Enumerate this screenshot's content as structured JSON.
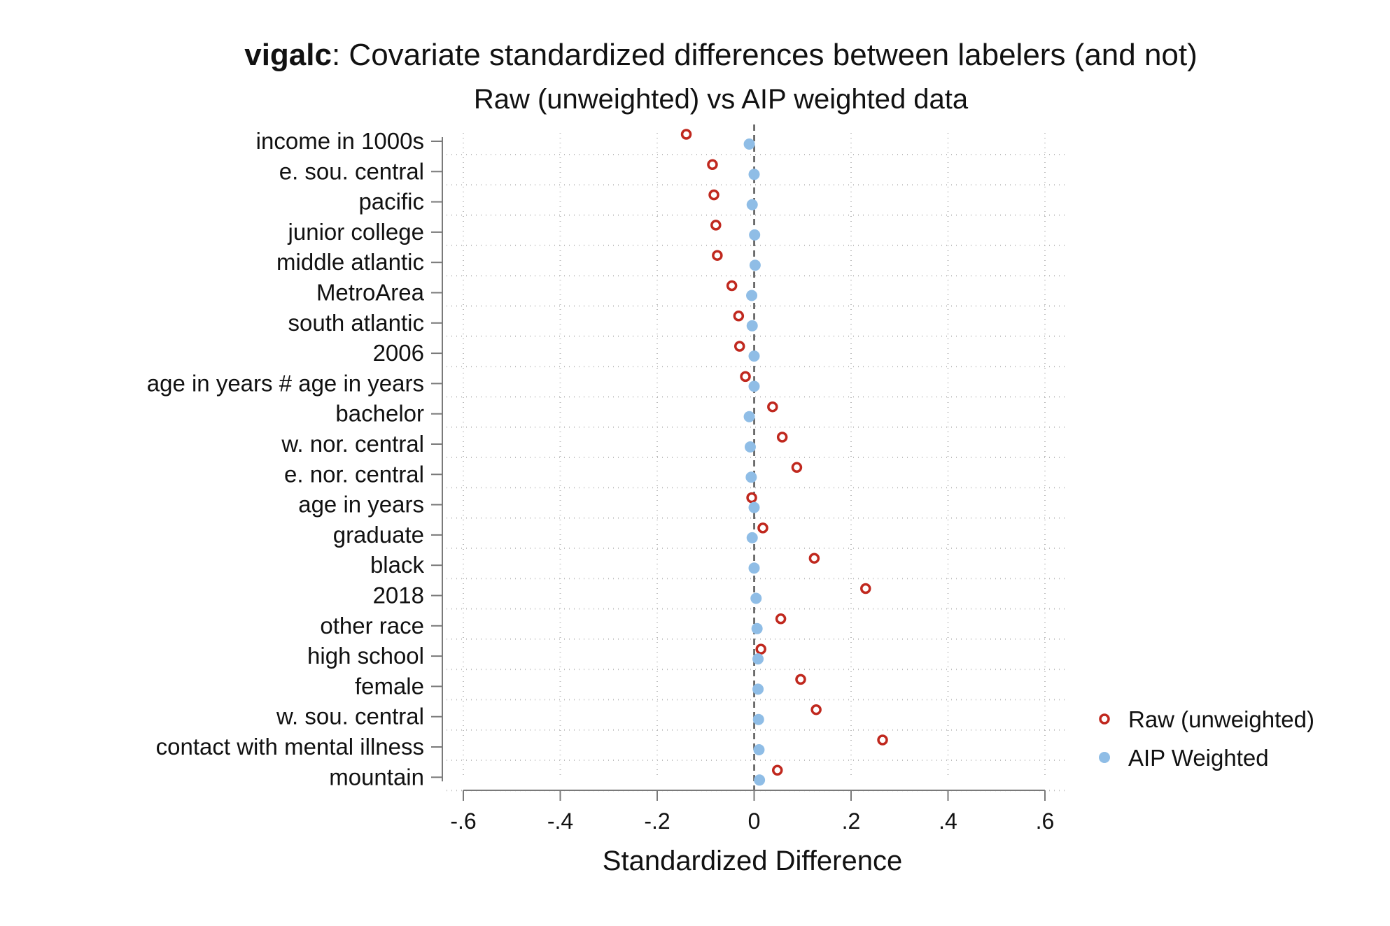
{
  "chart_data": {
    "type": "scatter",
    "title_bold": "vigalc",
    "title_rest": ": Covariate standardized differences between labelers (and not)",
    "subtitle": "Raw (unweighted) vs AIP weighted data",
    "xlabel": "Standardized Difference",
    "ylabel": "",
    "xlim": [
      -0.6,
      0.6
    ],
    "xticks": [
      -0.6,
      -0.4,
      -0.2,
      0,
      0.2,
      0.4,
      0.6
    ],
    "xtick_labels": [
      "-.6",
      "-.4",
      "-.2",
      "0",
      ".2",
      ".4",
      ".6"
    ],
    "reference_line_x": 0,
    "grid": "dotted",
    "legend_position": "right",
    "categories": [
      "income in 1000s",
      "e. sou. central",
      "pacific",
      "junior college",
      "middle atlantic",
      "MetroArea",
      "south atlantic",
      "2006",
      "age in years # age in years",
      "bachelor",
      "w. nor. central",
      "e. nor. central",
      "age in years",
      "graduate",
      "black",
      "2018",
      "other race",
      "high school",
      "female",
      "w. sou. central",
      "contact with mental illness",
      "mountain"
    ],
    "series": [
      {
        "name": "Raw (unweighted)",
        "color": "#c0281e",
        "marker": "hollow-circle",
        "values": [
          -0.14,
          -0.086,
          -0.083,
          -0.079,
          -0.076,
          -0.046,
          -0.032,
          -0.03,
          -0.018,
          0.038,
          0.058,
          0.088,
          -0.005,
          0.018,
          0.124,
          0.23,
          0.055,
          0.014,
          0.096,
          0.128,
          0.265,
          0.048
        ]
      },
      {
        "name": "AIP Weighted",
        "color": "#8fbde6",
        "marker": "filled-circle",
        "values": [
          -0.01,
          0.0,
          -0.004,
          0.001,
          0.002,
          -0.005,
          -0.004,
          0.0,
          0.0,
          -0.01,
          -0.008,
          -0.006,
          0.0,
          -0.004,
          0.0,
          0.004,
          0.006,
          0.008,
          0.008,
          0.009,
          0.01,
          0.011
        ]
      }
    ]
  }
}
